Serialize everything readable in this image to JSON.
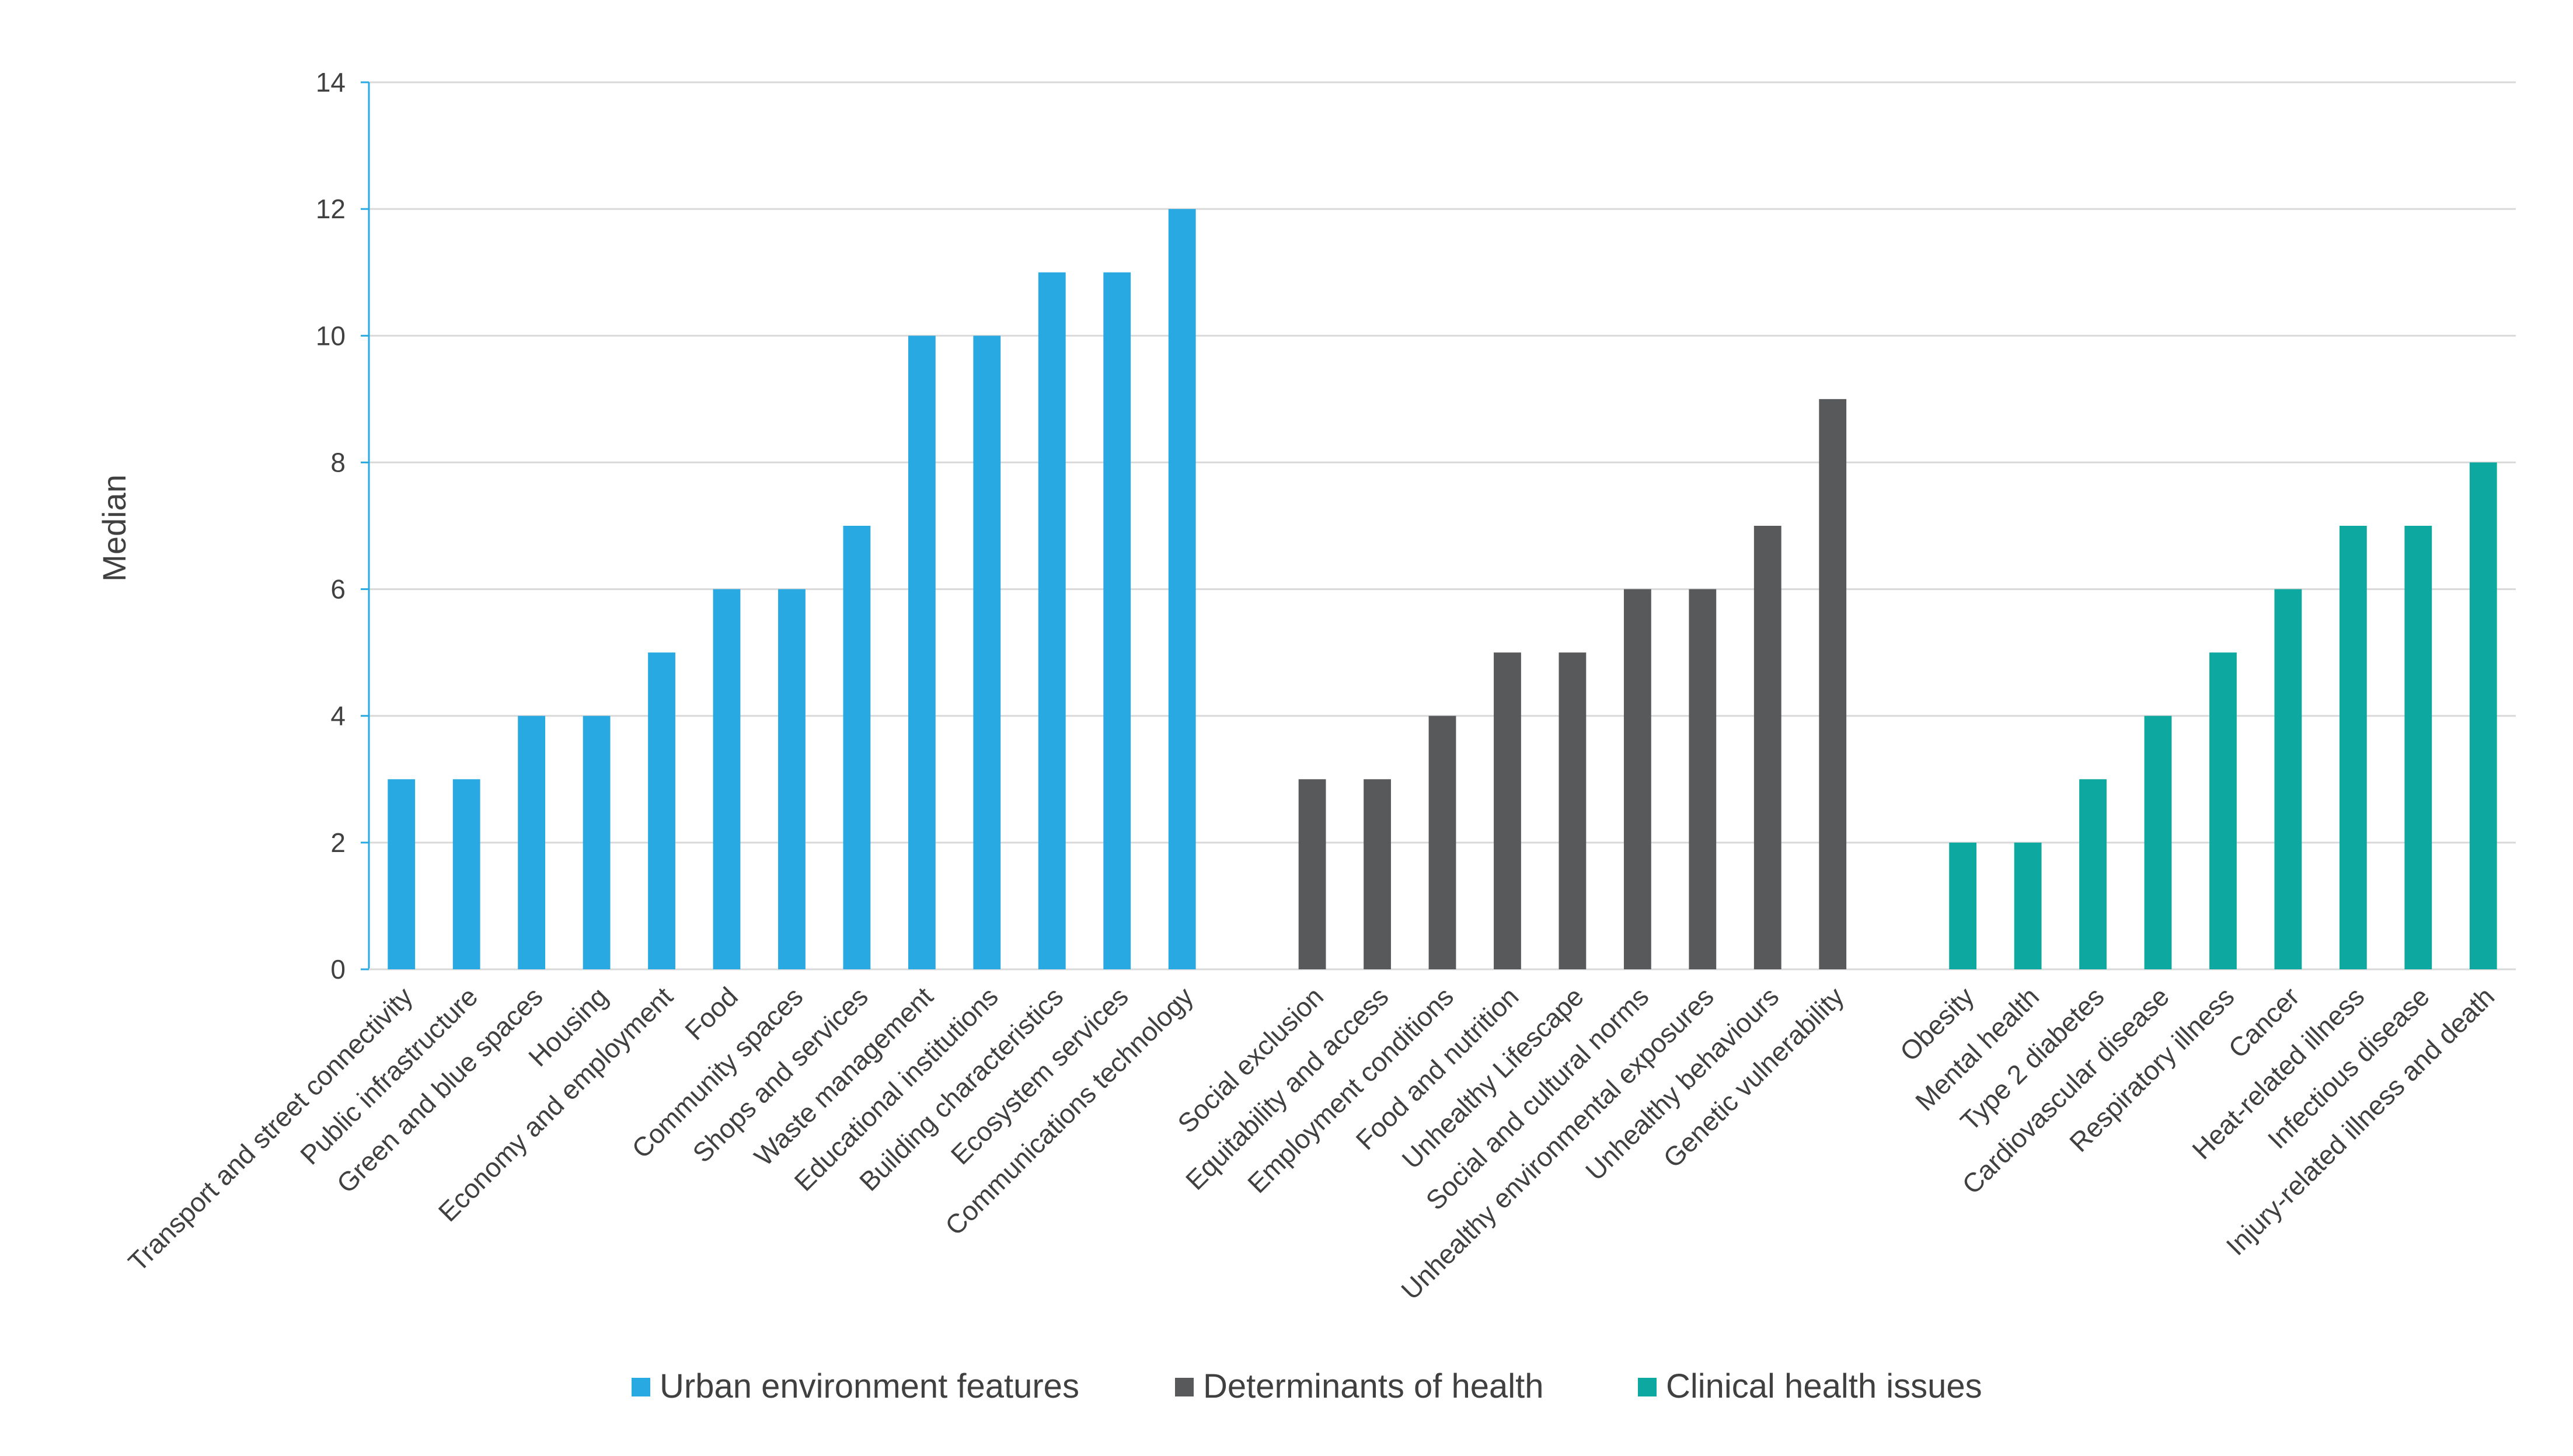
{
  "chart_data": {
    "type": "bar",
    "title": "",
    "xlabel": "",
    "ylabel": "Median",
    "ylim": [
      0,
      14
    ],
    "yticks": [
      0,
      2,
      4,
      6,
      8,
      10,
      12,
      14
    ],
    "grid": true,
    "legend_position": "bottom-center",
    "series": [
      {
        "name": "Urban environment features",
        "color": "#29A9E1",
        "categories": [
          "Transport and street connectivity",
          "Public infrastructure",
          "Green and blue spaces",
          "Housing",
          "Economy and employment",
          "Food",
          "Community spaces",
          "Shops and services",
          "Waste management",
          "Educational institutions",
          "Building characteristics",
          "Ecosystem services",
          "Communications technology"
        ],
        "values": [
          3,
          3,
          4,
          4,
          5,
          6,
          6,
          7,
          10,
          10,
          11,
          11,
          12
        ]
      },
      {
        "name": "Determinants of health",
        "color": "#58595B",
        "categories": [
          "Social exclusion",
          "Equitability and access",
          "Employment conditions",
          "Food and nutrition",
          "Unhealthy Lifescape",
          "Social and cultural norms",
          "Unhealthy environmental exposures",
          "Unhealthy behaviours",
          "Genetic vulnerability"
        ],
        "values": [
          3,
          3,
          4,
          5,
          5,
          6,
          6,
          7,
          9
        ]
      },
      {
        "name": "Clinical health issues",
        "color": "#0DA8A0",
        "categories": [
          "Obesity",
          "Mental health",
          "Type 2 diabetes",
          "Cardiovascular disease",
          "Respiratory illness",
          "Cancer",
          "Heat-related illness",
          "Infectious disease",
          "Injury-related illness and death"
        ],
        "values": [
          2,
          2,
          3,
          4,
          5,
          6,
          7,
          7,
          8
        ]
      }
    ]
  }
}
